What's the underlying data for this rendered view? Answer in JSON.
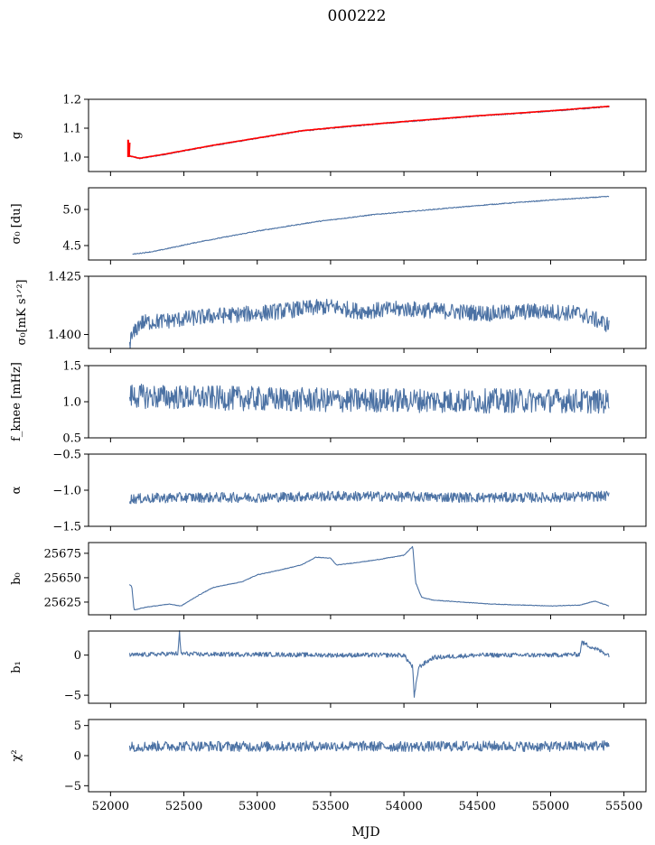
{
  "figure": {
    "title": "000222",
    "xlabel": "MJD",
    "xlim": [
      51850,
      55650
    ],
    "xticks": [
      52000,
      52500,
      53000,
      53500,
      54000,
      54500,
      55000,
      55500
    ],
    "xtick_labels": [
      "52000",
      "52500",
      "53000",
      "53500",
      "54000",
      "54500",
      "55000",
      "55500"
    ]
  },
  "colors": {
    "series": "#4c72a4",
    "fit": "#ff0000",
    "axes": "#000000"
  },
  "chart_data": [
    {
      "type": "line",
      "ylabel": "g",
      "ylim": [
        0.95,
        1.2
      ],
      "yticks": [
        1.0,
        1.1,
        1.2
      ],
      "ytick_labels": [
        "1.0",
        "1.1",
        "1.2"
      ],
      "series": [
        {
          "x": [
            52120,
            52200,
            52400,
            52700,
            53000,
            53300,
            53600,
            53900,
            54200,
            54500,
            54800,
            55100,
            55400
          ],
          "y": [
            1.005,
            0.995,
            1.012,
            1.04,
            1.065,
            1.09,
            1.105,
            1.118,
            1.13,
            1.142,
            1.152,
            1.163,
            1.175
          ]
        },
        {
          "x": [
            52120,
            52200,
            52400,
            52700,
            53000,
            53300,
            53600,
            53900,
            54200,
            54500,
            54800,
            55100,
            55400
          ],
          "y": [
            1.005,
            0.996,
            1.013,
            1.041,
            1.066,
            1.091,
            1.106,
            1.119,
            1.131,
            1.143,
            1.153,
            1.164,
            1.176
          ]
        }
      ]
    },
    {
      "type": "line",
      "ylabel": "σ₀ [du]",
      "ylim": [
        4.3,
        5.3
      ],
      "yticks": [
        4.5,
        5.0
      ],
      "ytick_labels": [
        "4.5",
        "5.0"
      ],
      "series": [
        {
          "x": [
            52150,
            52300,
            52600,
            53000,
            53400,
            53800,
            54200,
            54600,
            55000,
            55400
          ],
          "y": [
            4.38,
            4.42,
            4.55,
            4.7,
            4.83,
            4.93,
            5.0,
            5.07,
            5.13,
            5.18
          ]
        }
      ]
    },
    {
      "type": "line",
      "ylabel": "σ₀[mK s¹ᐟ²]",
      "ylim": [
        1.394,
        1.425
      ],
      "yticks": [
        1.4,
        1.425
      ],
      "ytick_labels": [
        "1.400",
        "1.425"
      ],
      "series": [
        {
          "x": [
            52130,
            52200,
            52400,
            52700,
            53000,
            53300,
            53500,
            53700,
            54000,
            54300,
            54600,
            54900,
            55200,
            55400
          ],
          "y": [
            1.397,
            1.405,
            1.406,
            1.408,
            1.409,
            1.411,
            1.412,
            1.41,
            1.411,
            1.41,
            1.409,
            1.41,
            1.409,
            1.404
          ]
        }
      ]
    },
    {
      "type": "line",
      "ylabel": "f_knee [mHz]",
      "ylim": [
        0.5,
        1.5
      ],
      "yticks": [
        0.5,
        1.0,
        1.5
      ],
      "ytick_labels": [
        "0.5",
        "1.0",
        "1.5"
      ],
      "series": [
        {
          "x": [
            52130,
            52500,
            53000,
            53500,
            54000,
            54500,
            55000,
            55400
          ],
          "y": [
            1.08,
            1.06,
            1.04,
            1.02,
            1.02,
            1.01,
            1.02,
            1.0
          ]
        }
      ]
    },
    {
      "type": "line",
      "ylabel": "α",
      "ylim": [
        -1.5,
        -0.5
      ],
      "yticks": [
        -1.5,
        -1.0,
        -0.5
      ],
      "ytick_labels": [
        "−1.5",
        "−1.0",
        "−0.5"
      ],
      "series": [
        {
          "x": [
            52130,
            52500,
            53000,
            53500,
            54000,
            54500,
            55000,
            55400
          ],
          "y": [
            -1.12,
            -1.1,
            -1.1,
            -1.08,
            -1.09,
            -1.1,
            -1.1,
            -1.08
          ]
        }
      ]
    },
    {
      "type": "line",
      "ylabel": "b₀",
      "ylim": [
        25612,
        25686
      ],
      "yticks": [
        25625,
        25650,
        25675
      ],
      "ytick_labels": [
        "25625",
        "25650",
        "25675"
      ],
      "series": [
        {
          "x": [
            52130,
            52145,
            52160,
            52250,
            52400,
            52480,
            52600,
            52700,
            52900,
            53000,
            53100,
            53300,
            53400,
            53500,
            53540,
            53600,
            53800,
            54000,
            54060,
            54080,
            54120,
            54200,
            54400,
            54600,
            54800,
            55000,
            55200,
            55300,
            55400
          ],
          "y": [
            25643,
            25641,
            25617,
            25620,
            25623,
            25621,
            25632,
            25640,
            25646,
            25653,
            25656,
            25663,
            25671,
            25670,
            25663,
            25664,
            25668,
            25673,
            25682,
            25645,
            25630,
            25627,
            25625,
            25623,
            25622,
            25621,
            25622,
            25626,
            25621
          ]
        }
      ]
    },
    {
      "type": "line",
      "ylabel": "b₁",
      "ylim": [
        -6,
        3
      ],
      "yticks": [
        -5,
        0
      ],
      "ytick_labels": [
        "−5",
        "0"
      ],
      "series": [
        {
          "x": [
            52130,
            52460,
            52470,
            52480,
            52600,
            53000,
            53500,
            54000,
            54060,
            54070,
            54100,
            54200,
            54500,
            55000,
            55200,
            55210,
            55400
          ],
          "y": [
            0.0,
            0.2,
            2.8,
            0.2,
            0.1,
            0.1,
            0.0,
            0.0,
            -1.5,
            -5.3,
            -1.5,
            -0.3,
            0.0,
            0.0,
            0.1,
            1.6,
            0.0
          ]
        }
      ]
    },
    {
      "type": "line",
      "ylabel": "χ²",
      "ylim": [
        -6,
        6
      ],
      "yticks": [
        -5,
        0,
        5
      ],
      "ytick_labels": [
        "−5",
        "0",
        "5"
      ],
      "series": [
        {
          "x": [
            52130,
            52500,
            53000,
            53500,
            54000,
            54500,
            55000,
            55400
          ],
          "y": [
            1.5,
            1.6,
            1.5,
            1.6,
            1.5,
            1.6,
            1.5,
            1.7
          ]
        }
      ]
    }
  ]
}
